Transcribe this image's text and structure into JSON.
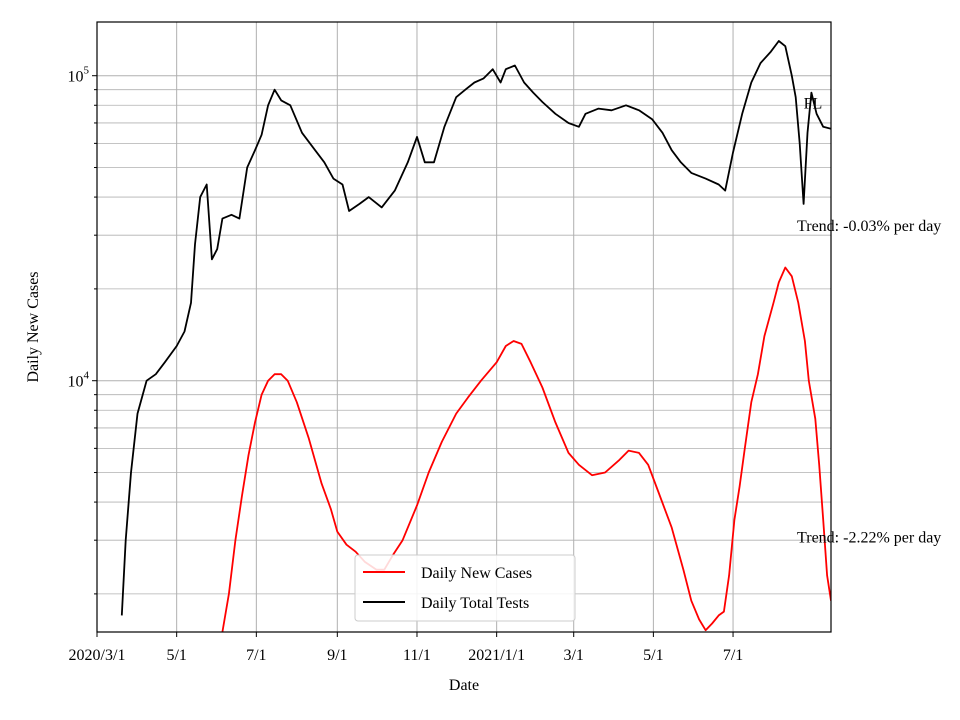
{
  "chart_data": {
    "type": "line",
    "title": "",
    "xlabel": "Date",
    "ylabel": "Daily New Cases",
    "yscale": "log",
    "ylim": [
      1500,
      150000
    ],
    "xlim": [
      "2020-03-01",
      "2021-09-14"
    ],
    "grid": true,
    "legend_position": "bottom-center",
    "x_ticks": [
      {
        "date": "2020-03-01",
        "label": "2020/3/1"
      },
      {
        "date": "2020-05-01",
        "label": "5/1"
      },
      {
        "date": "2020-07-01",
        "label": "7/1"
      },
      {
        "date": "2020-09-01",
        "label": "9/1"
      },
      {
        "date": "2020-11-01",
        "label": "11/1"
      },
      {
        "date": "2021-01-01",
        "label": "2021/1/1"
      },
      {
        "date": "2021-03-01",
        "label": "3/1"
      },
      {
        "date": "2021-05-01",
        "label": "5/1"
      },
      {
        "date": "2021-07-01",
        "label": "7/1"
      }
    ],
    "y_ticks": [
      {
        "value": 10000,
        "base": "10",
        "exp": "4"
      },
      {
        "value": 100000,
        "base": "10",
        "exp": "5"
      }
    ],
    "series": [
      {
        "name": "Daily New Cases",
        "color": "#ff0000",
        "points": [
          [
            "2020-06-05",
            1500
          ],
          [
            "2020-06-10",
            2000
          ],
          [
            "2020-06-15",
            3000
          ],
          [
            "2020-06-20",
            4200
          ],
          [
            "2020-06-25",
            5700
          ],
          [
            "2020-06-30",
            7300
          ],
          [
            "2020-07-05",
            9000
          ],
          [
            "2020-07-10",
            10000
          ],
          [
            "2020-07-15",
            10500
          ],
          [
            "2020-07-20",
            10500
          ],
          [
            "2020-07-25",
            10000
          ],
          [
            "2020-08-01",
            8500
          ],
          [
            "2020-08-10",
            6500
          ],
          [
            "2020-08-20",
            4600
          ],
          [
            "2020-08-27",
            3800
          ],
          [
            "2020-09-01",
            3200
          ],
          [
            "2020-09-08",
            2900
          ],
          [
            "2020-09-15",
            2750
          ],
          [
            "2020-09-22",
            2550
          ],
          [
            "2020-10-01",
            2400
          ],
          [
            "2020-10-07",
            2400
          ],
          [
            "2020-10-14",
            2700
          ],
          [
            "2020-10-21",
            3000
          ],
          [
            "2020-11-01",
            3900
          ],
          [
            "2020-11-10",
            5000
          ],
          [
            "2020-11-20",
            6300
          ],
          [
            "2020-12-01",
            7800
          ],
          [
            "2020-12-10",
            8800
          ],
          [
            "2020-12-20",
            10000
          ],
          [
            "2021-01-01",
            11500
          ],
          [
            "2021-01-08",
            13000
          ],
          [
            "2021-01-14",
            13500
          ],
          [
            "2021-01-20",
            13200
          ],
          [
            "2021-01-27",
            11500
          ],
          [
            "2021-02-05",
            9500
          ],
          [
            "2021-02-15",
            7300
          ],
          [
            "2021-02-25",
            5800
          ],
          [
            "2021-03-05",
            5300
          ],
          [
            "2021-03-15",
            4900
          ],
          [
            "2021-03-25",
            5000
          ],
          [
            "2021-04-05",
            5500
          ],
          [
            "2021-04-12",
            5900
          ],
          [
            "2021-04-20",
            5800
          ],
          [
            "2021-04-27",
            5300
          ],
          [
            "2021-05-05",
            4300
          ],
          [
            "2021-05-15",
            3300
          ],
          [
            "2021-05-24",
            2400
          ],
          [
            "2021-05-30",
            1900
          ],
          [
            "2021-06-05",
            1650
          ],
          [
            "2021-06-10",
            1520
          ],
          [
            "2021-06-15",
            1600
          ],
          [
            "2021-06-20",
            1700
          ],
          [
            "2021-06-24",
            1750
          ],
          [
            "2021-06-28",
            2300
          ],
          [
            "2021-07-02",
            3500
          ],
          [
            "2021-07-06",
            4500
          ],
          [
            "2021-07-10",
            6000
          ],
          [
            "2021-07-15",
            8500
          ],
          [
            "2021-07-20",
            10500
          ],
          [
            "2021-07-25",
            14000
          ],
          [
            "2021-08-01",
            18000
          ],
          [
            "2021-08-05",
            21000
          ],
          [
            "2021-08-10",
            23500
          ],
          [
            "2021-08-15",
            22000
          ],
          [
            "2021-08-20",
            18000
          ],
          [
            "2021-08-25",
            13500
          ],
          [
            "2021-08-28",
            10000
          ],
          [
            "2021-09-02",
            7500
          ],
          [
            "2021-09-05",
            5300
          ],
          [
            "2021-09-08",
            3500
          ],
          [
            "2021-09-11",
            2300
          ],
          [
            "2021-09-14",
            1900
          ]
        ]
      },
      {
        "name": "Daily Total Tests",
        "color": "#000000",
        "points": [
          [
            "2020-03-20",
            1700
          ],
          [
            "2020-03-23",
            3000
          ],
          [
            "2020-03-27",
            5000
          ],
          [
            "2020-04-01",
            7800
          ],
          [
            "2020-04-08",
            10000
          ],
          [
            "2020-04-15",
            10500
          ],
          [
            "2020-04-22",
            11500
          ],
          [
            "2020-05-01",
            13000
          ],
          [
            "2020-05-07",
            14500
          ],
          [
            "2020-05-12",
            18000
          ],
          [
            "2020-05-15",
            28000
          ],
          [
            "2020-05-19",
            40000
          ],
          [
            "2020-05-24",
            44000
          ],
          [
            "2020-05-28",
            25000
          ],
          [
            "2020-06-01",
            27000
          ],
          [
            "2020-06-05",
            34000
          ],
          [
            "2020-06-12",
            35000
          ],
          [
            "2020-06-18",
            34000
          ],
          [
            "2020-06-24",
            50000
          ],
          [
            "2020-06-30",
            57000
          ],
          [
            "2020-07-05",
            64000
          ],
          [
            "2020-07-10",
            80000
          ],
          [
            "2020-07-15",
            90000
          ],
          [
            "2020-07-20",
            83000
          ],
          [
            "2020-07-27",
            80000
          ],
          [
            "2020-08-05",
            65000
          ],
          [
            "2020-08-15",
            57000
          ],
          [
            "2020-08-22",
            52000
          ],
          [
            "2020-08-29",
            46000
          ],
          [
            "2020-09-05",
            44000
          ],
          [
            "2020-09-10",
            36000
          ],
          [
            "2020-09-18",
            38000
          ],
          [
            "2020-09-25",
            40000
          ],
          [
            "2020-10-05",
            37000
          ],
          [
            "2020-10-15",
            42000
          ],
          [
            "2020-10-25",
            52000
          ],
          [
            "2020-11-01",
            63000
          ],
          [
            "2020-11-07",
            52000
          ],
          [
            "2020-11-14",
            52000
          ],
          [
            "2020-11-22",
            68000
          ],
          [
            "2020-12-01",
            85000
          ],
          [
            "2020-12-08",
            90000
          ],
          [
            "2020-12-15",
            95000
          ],
          [
            "2020-12-22",
            98000
          ],
          [
            "2020-12-29",
            105000
          ],
          [
            "2021-01-04",
            95000
          ],
          [
            "2021-01-08",
            105000
          ],
          [
            "2021-01-15",
            108000
          ],
          [
            "2021-01-22",
            95000
          ],
          [
            "2021-01-29",
            88000
          ],
          [
            "2021-02-05",
            82000
          ],
          [
            "2021-02-15",
            75000
          ],
          [
            "2021-02-25",
            70000
          ],
          [
            "2021-03-05",
            68000
          ],
          [
            "2021-03-10",
            75000
          ],
          [
            "2021-03-20",
            78000
          ],
          [
            "2021-03-30",
            77000
          ],
          [
            "2021-04-10",
            80000
          ],
          [
            "2021-04-20",
            77000
          ],
          [
            "2021-04-30",
            72000
          ],
          [
            "2021-05-08",
            65000
          ],
          [
            "2021-05-15",
            57000
          ],
          [
            "2021-05-22",
            52000
          ],
          [
            "2021-05-30",
            48000
          ],
          [
            "2021-06-10",
            46000
          ],
          [
            "2021-06-20",
            44000
          ],
          [
            "2021-06-25",
            42000
          ],
          [
            "2021-07-01",
            56000
          ],
          [
            "2021-07-08",
            75000
          ],
          [
            "2021-07-15",
            95000
          ],
          [
            "2021-07-22",
            110000
          ],
          [
            "2021-07-30",
            120000
          ],
          [
            "2021-08-05",
            130000
          ],
          [
            "2021-08-10",
            125000
          ],
          [
            "2021-08-15",
            100000
          ],
          [
            "2021-08-18",
            85000
          ],
          [
            "2021-08-21",
            60000
          ],
          [
            "2021-08-24",
            38000
          ],
          [
            "2021-08-27",
            65000
          ],
          [
            "2021-08-30",
            88000
          ],
          [
            "2021-09-03",
            75000
          ],
          [
            "2021-09-08",
            68000
          ],
          [
            "2021-09-14",
            67000
          ]
        ]
      }
    ],
    "annotations": [
      {
        "text": "Trend: -0.03% per day",
        "date": "2021-08-19",
        "value": 31000
      },
      {
        "text": "Trend: -2.22% per day",
        "date": "2021-08-19",
        "value": 2950
      },
      {
        "text": "FL",
        "date": "2021-08-24",
        "value": 78000
      }
    ]
  }
}
